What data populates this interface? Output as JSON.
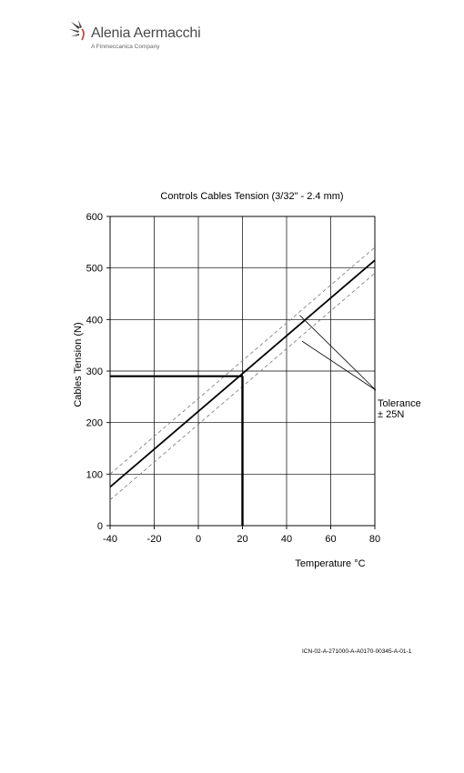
{
  "header": {
    "brand_name": "Alenia Aermacchi",
    "brand_tagline": "A Finmeccanica Company"
  },
  "chart_data": {
    "type": "line",
    "title": "Controls Cables Tension (3/32\" - 2.4 mm)",
    "xlabel": "Temperature °C",
    "ylabel": "Cables Tension (N)",
    "xlim": [
      -40,
      80
    ],
    "ylim": [
      0,
      600
    ],
    "x_ticks": [
      -40,
      -20,
      0,
      20,
      40,
      60,
      80
    ],
    "x_tick_labels": [
      "-40",
      "-20",
      "0",
      "20",
      "40",
      "60",
      "80"
    ],
    "y_ticks": [
      0,
      100,
      200,
      300,
      400,
      500,
      600
    ],
    "y_tick_labels": [
      "0",
      "100",
      "200",
      "300",
      "400",
      "500",
      "600"
    ],
    "grid": true,
    "series": [
      {
        "x": [
          -40,
          80
        ],
        "y": [
          75,
          515
        ],
        "style": "solid"
      },
      {
        "x": [
          -40,
          80
        ],
        "y": [
          100,
          540
        ],
        "style": "dashed"
      },
      {
        "x": [
          -40,
          80
        ],
        "y": [
          50,
          490
        ],
        "style": "dashed"
      }
    ],
    "reference": {
      "x": 20,
      "y": 290
    },
    "annotation": {
      "lines": [
        "Tolerance",
        "± 25N"
      ],
      "pointers": [
        {
          "x": 46,
          "y": 408
        },
        {
          "x": 47,
          "y": 358
        }
      ]
    }
  },
  "footer": {
    "document_code": "ICN-02-A-271000-A-A0170-00345-A-01-1"
  }
}
